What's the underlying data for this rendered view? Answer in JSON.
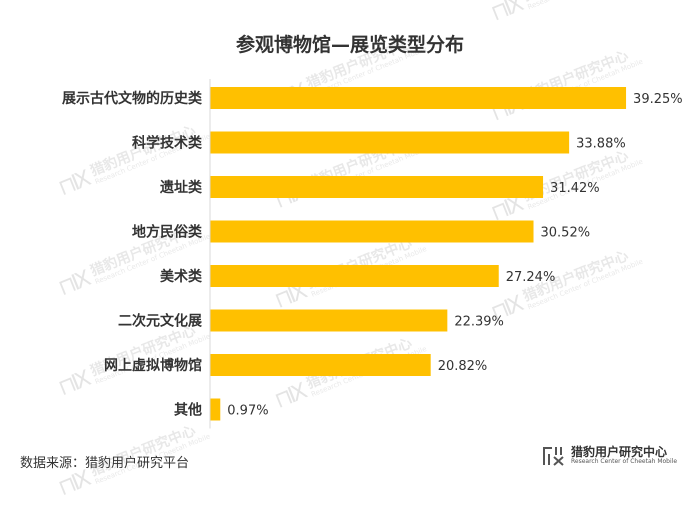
{
  "chart_data": {
    "type": "bar",
    "orientation": "horizontal",
    "title": "参观博物馆—展览类型分布",
    "categories": [
      "展示古代文物的历史类",
      "科学技术类",
      "遗址类",
      "地方民俗类",
      "美术类",
      "二次元文化展",
      "网上虚拟博物馆",
      "其他"
    ],
    "values": [
      39.25,
      33.88,
      31.42,
      30.52,
      27.24,
      22.39,
      20.82,
      0.97
    ],
    "value_labels": [
      "39.25%",
      "33.88%",
      "31.42%",
      "30.52%",
      "27.24%",
      "22.39%",
      "20.82%",
      "0.97%"
    ],
    "xlim": [
      0,
      40
    ],
    "grid": false,
    "bar_color": "#FFC000"
  },
  "footer": {
    "source": "数据来源：猎豹用户研究平台",
    "logo_cn": "猎豹用户研究中心",
    "logo_en": "Research Center of Cheetah Mobile"
  },
  "watermark": {
    "cn": "猎豹用户研究中心",
    "en": "Research Center of Cheetah Mobile"
  }
}
